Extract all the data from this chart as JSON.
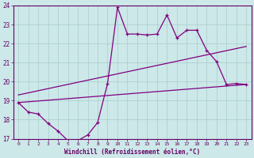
{
  "xlabel": "Windchill (Refroidissement éolien,°C)",
  "background_color": "#cce8e8",
  "grid_color": "#aacccc",
  "line_color": "#800080",
  "xlim": [
    -0.5,
    23.5
  ],
  "ylim": [
    17,
    24
  ],
  "yticks": [
    17,
    18,
    19,
    20,
    21,
    22,
    23,
    24
  ],
  "xticks": [
    0,
    1,
    2,
    3,
    4,
    5,
    6,
    7,
    8,
    9,
    10,
    11,
    12,
    13,
    14,
    15,
    16,
    17,
    18,
    19,
    20,
    21,
    22,
    23
  ],
  "series1_x": [
    0,
    1,
    2,
    3,
    4,
    5,
    6,
    7,
    8,
    9,
    10,
    11,
    12,
    13,
    14,
    15,
    16,
    17,
    18,
    19,
    20,
    21,
    22,
    23
  ],
  "series1_y": [
    18.9,
    18.4,
    18.3,
    17.8,
    17.4,
    16.9,
    16.9,
    17.2,
    17.85,
    19.9,
    23.9,
    22.5,
    22.5,
    22.45,
    22.5,
    23.5,
    22.3,
    22.7,
    22.7,
    21.65,
    21.05,
    19.85,
    19.9,
    19.85
  ],
  "series2_x": [
    0,
    23
  ],
  "series2_y": [
    18.9,
    19.85
  ],
  "series3_x": [
    0,
    23
  ],
  "series3_y": [
    19.3,
    21.85
  ],
  "figwidth": 3.2,
  "figheight": 2.0,
  "dpi": 100
}
